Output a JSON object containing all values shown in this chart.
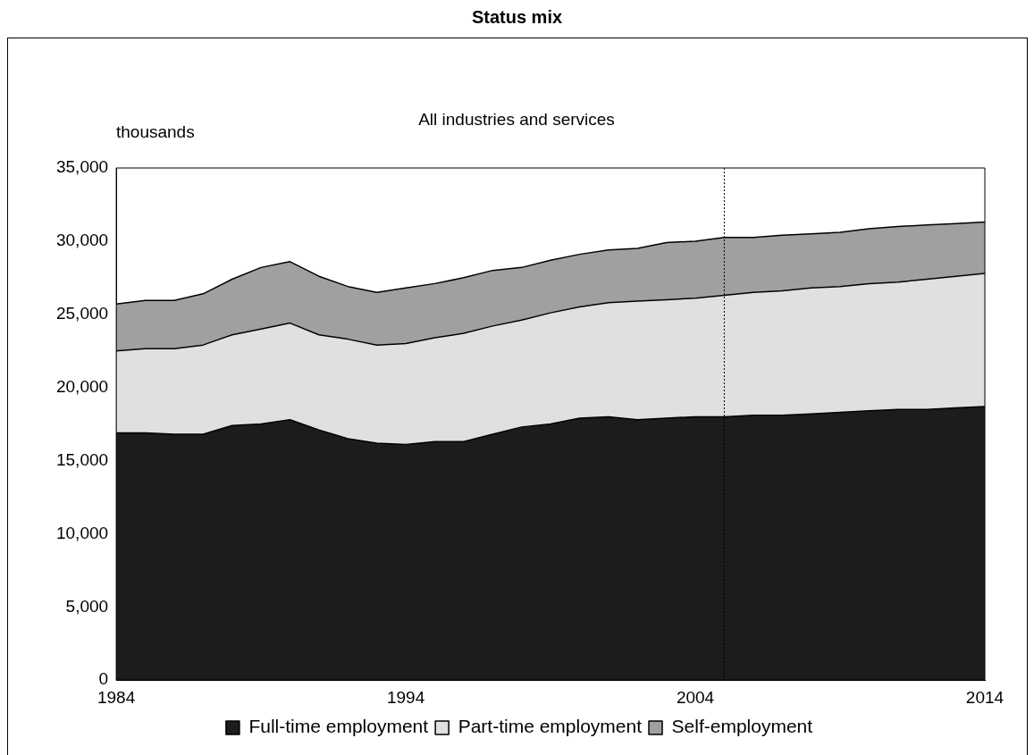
{
  "chart_data": {
    "type": "area",
    "title": "Status mix",
    "subtitle": "All industries and services",
    "ylabel": "thousands",
    "x": [
      1984,
      1985,
      1986,
      1987,
      1988,
      1989,
      1990,
      1991,
      1992,
      1993,
      1994,
      1995,
      1996,
      1997,
      1998,
      1999,
      2000,
      2001,
      2002,
      2003,
      2004,
      2005,
      2006,
      2007,
      2008,
      2009,
      2010,
      2011,
      2012,
      2013,
      2014
    ],
    "stacked": true,
    "series": [
      {
        "name": "Full-time employment",
        "color": "#1c1c1c",
        "values": [
          16900,
          16900,
          16800,
          16800,
          17400,
          17500,
          17800,
          17100,
          16500,
          16200,
          16100,
          16300,
          16300,
          16800,
          17300,
          17500,
          17900,
          18000,
          17800,
          17900,
          18000,
          18000,
          18100,
          18100,
          18200,
          18300,
          18400,
          18500,
          18500,
          18600,
          18700
        ]
      },
      {
        "name": "Part-time employment",
        "color": "#e0e0e0",
        "values": [
          5600,
          5750,
          5850,
          6100,
          6200,
          6500,
          6600,
          6500,
          6800,
          6700,
          6900,
          7100,
          7400,
          7400,
          7300,
          7600,
          7600,
          7800,
          8100,
          8100,
          8100,
          8300,
          8400,
          8500,
          8600,
          8600,
          8700,
          8700,
          8900,
          9000,
          9100
        ]
      },
      {
        "name": "Self-employment",
        "color": "#a0a0a0",
        "values": [
          3200,
          3300,
          3300,
          3500,
          3800,
          4200,
          4200,
          4000,
          3600,
          3600,
          3800,
          3700,
          3800,
          3800,
          3600,
          3600,
          3600,
          3600,
          3600,
          3900,
          3900,
          3950,
          3750,
          3800,
          3700,
          3700,
          3750,
          3800,
          3700,
          3600,
          3500
        ]
      }
    ],
    "xlim": [
      1984,
      2014
    ],
    "xticks": [
      1984,
      1994,
      2004,
      2014
    ],
    "ylim": [
      0,
      35000
    ],
    "yticks": [
      0,
      {
        "value": 5000,
        "label": "5,000"
      },
      {
        "value": 10000,
        "label": "10,000"
      },
      {
        "value": 15000,
        "label": "15,000"
      },
      {
        "value": 20000,
        "label": "20,000"
      },
      {
        "value": 25000,
        "label": "25,000"
      },
      {
        "value": 30000,
        "label": "30,000"
      },
      {
        "value": 35000,
        "label": "35,000"
      }
    ],
    "ref_lines": [
      {
        "axis": "x",
        "value": 2005,
        "line_style": "dotted",
        "color": "#000000"
      }
    ],
    "grid": false,
    "legend": "bottom"
  }
}
